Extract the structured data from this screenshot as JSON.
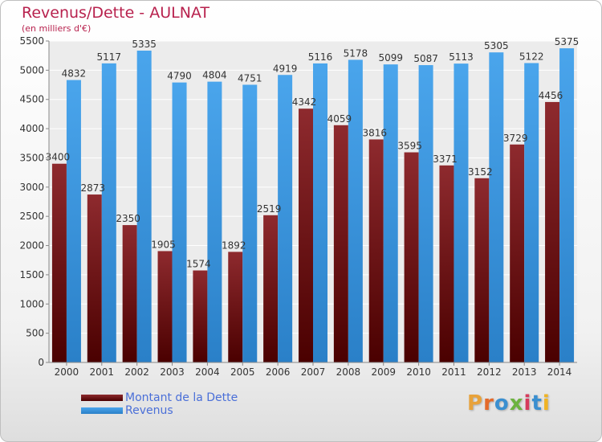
{
  "title": "Revenus/Dette - AULNAT",
  "subtitle": "(en milliers d'€)",
  "chart_data": {
    "type": "bar",
    "categories": [
      "2000",
      "2001",
      "2002",
      "2003",
      "2004",
      "2005",
      "2006",
      "2007",
      "2008",
      "2009",
      "2010",
      "2011",
      "2012",
      "2013",
      "2014"
    ],
    "series": [
      {
        "name": "Montant de la Dette",
        "color": "#7a1f23",
        "values": [
          3400,
          2873,
          2350,
          1905,
          1574,
          1892,
          2519,
          4342,
          4059,
          3816,
          3595,
          3371,
          3152,
          3729,
          4456
        ],
        "labels": [
          "3400",
          "2873",
          "2350",
          "1905",
          "1574",
          "1892",
          "2519",
          "4342",
          "4059",
          "3816",
          "3595",
          "3371",
          "3152",
          "3729",
          "4456"
        ]
      },
      {
        "name": "Revenus",
        "color": "#3d9be6",
        "values": [
          4832,
          5117,
          5335,
          4790,
          4804,
          4751,
          4919,
          5116,
          5178,
          5099,
          5087,
          5113,
          5305,
          5122,
          5375
        ],
        "labels": [
          "4832",
          "5117",
          "5335",
          "4790",
          "4804",
          "4751",
          "4919",
          "5116",
          "5178",
          "5099",
          "5087",
          "5113",
          "5305",
          "5122",
          "5375"
        ]
      }
    ],
    "yticks": [
      "0",
      "500",
      "1000",
      "1500",
      "2000",
      "2500",
      "3000",
      "3500",
      "4000",
      "4500",
      "5000",
      "5500"
    ],
    "ylim": [
      0,
      5500
    ],
    "grid": true,
    "legend_position": "bottom-left"
  },
  "logo": {
    "text": "Proxiti",
    "colors": [
      "#e8a23a",
      "#e46a2a",
      "#3a8fd0",
      "#6cb33f",
      "#d63b5c",
      "#3a8fd0",
      "#f0b323"
    ]
  }
}
